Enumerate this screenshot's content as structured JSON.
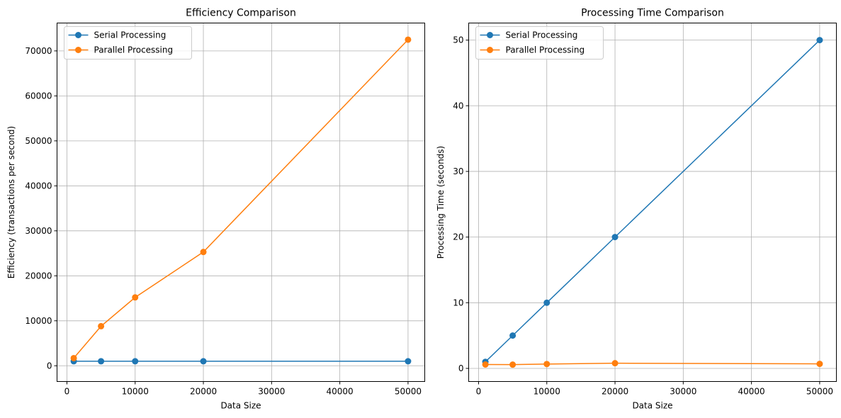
{
  "chart_data": [
    {
      "type": "line",
      "title": "Efficiency Comparison",
      "xlabel": "Data Size",
      "ylabel": "Efficiency (transactions per second)",
      "x": [
        1000,
        5000,
        10000,
        20000,
        50000
      ],
      "xlim": [
        -1450,
        52450
      ],
      "ylim": [
        -3500,
        76200
      ],
      "xticks": [
        0,
        10000,
        20000,
        30000,
        40000,
        50000
      ],
      "yticks": [
        0,
        10000,
        20000,
        30000,
        40000,
        50000,
        60000,
        70000
      ],
      "grid": true,
      "legend_position": "upper-left",
      "series": [
        {
          "name": "Serial Processing",
          "color": "#1f77b4",
          "values": [
            1000,
            1000,
            1000,
            1000,
            1000
          ]
        },
        {
          "name": "Parallel Processing",
          "color": "#ff7f0e",
          "values": [
            1700,
            8800,
            15200,
            25300,
            72500
          ]
        }
      ]
    },
    {
      "type": "line",
      "title": "Processing Time Comparison",
      "xlabel": "Data Size",
      "ylabel": "Processing Time (seconds)",
      "x": [
        1000,
        5000,
        10000,
        20000,
        50000
      ],
      "xlim": [
        -1450,
        52450
      ],
      "ylim": [
        -2.0,
        52.6
      ],
      "xticks": [
        0,
        10000,
        20000,
        30000,
        40000,
        50000
      ],
      "yticks": [
        0,
        10,
        20,
        30,
        40,
        50
      ],
      "grid": true,
      "legend_position": "upper-left",
      "series": [
        {
          "name": "Serial Processing",
          "color": "#1f77b4",
          "values": [
            1.0,
            5.0,
            10.0,
            20.0,
            50.0
          ]
        },
        {
          "name": "Parallel Processing",
          "color": "#ff7f0e",
          "values": [
            0.59,
            0.57,
            0.66,
            0.79,
            0.69
          ]
        }
      ]
    }
  ]
}
